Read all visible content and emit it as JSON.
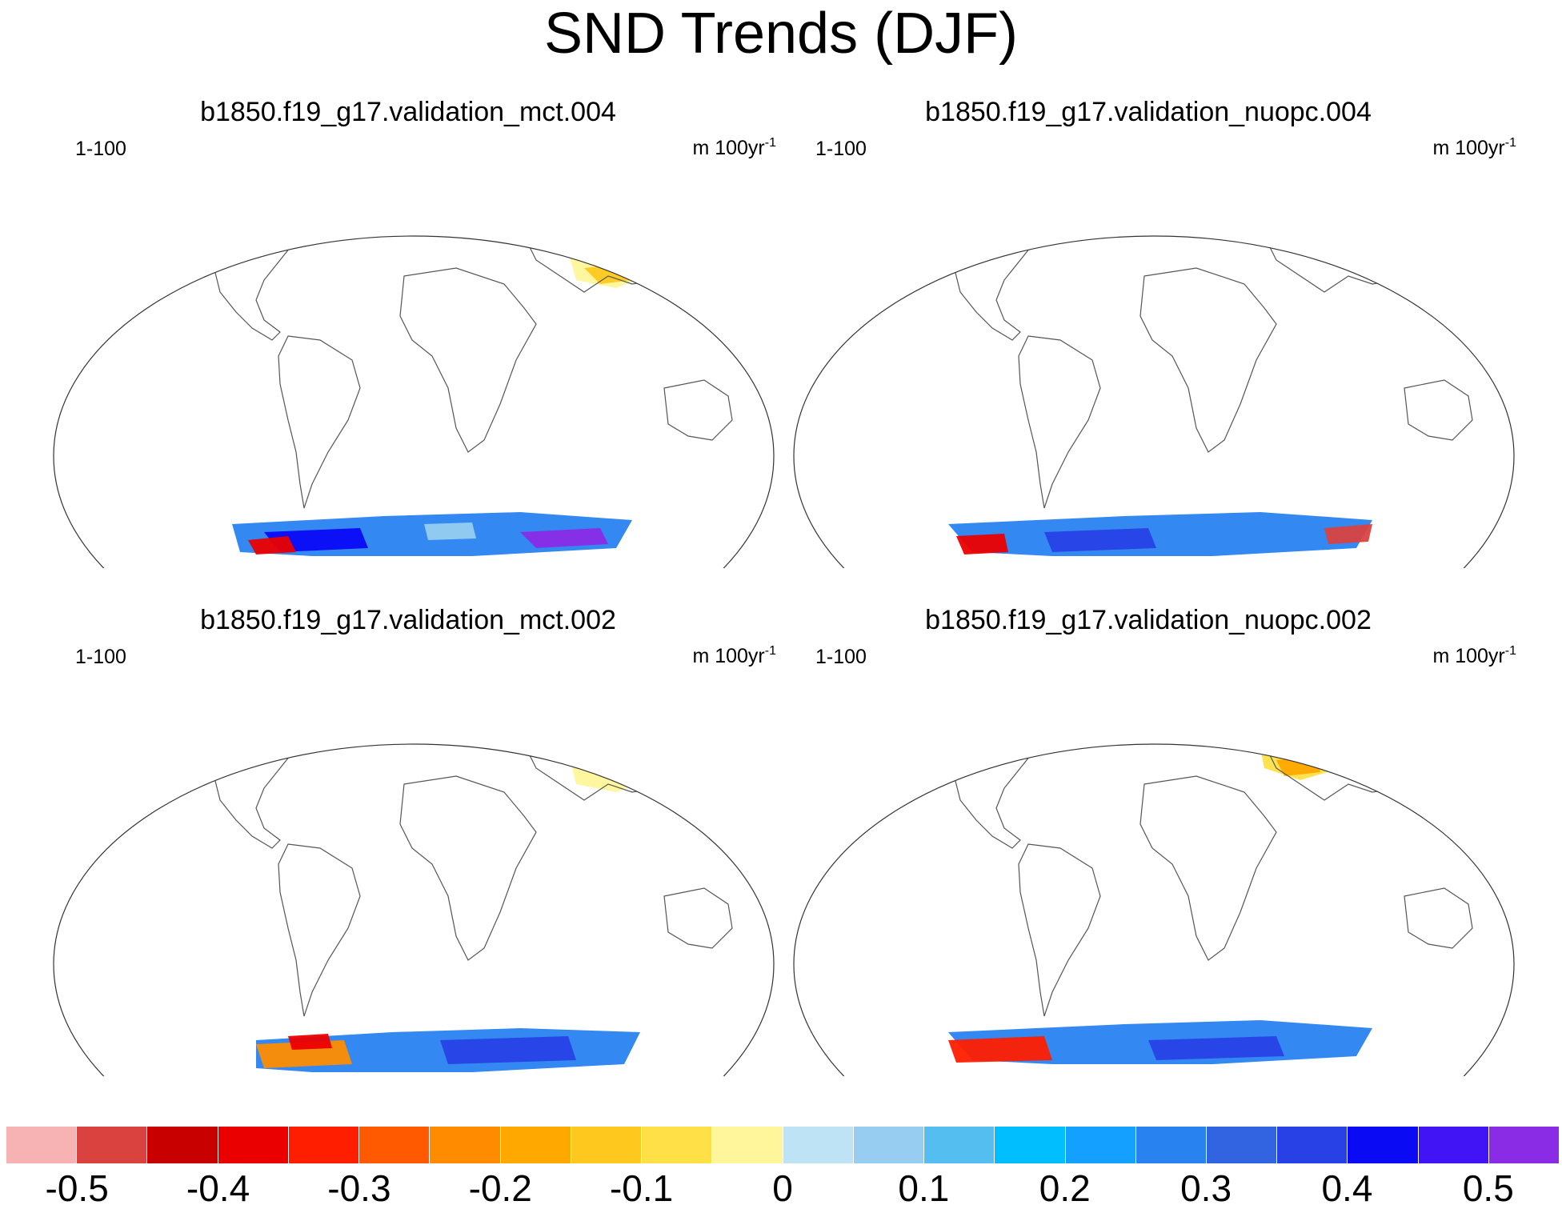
{
  "title": "SND Trends (DJF)",
  "panels": [
    {
      "title": "b1850.f19_g17.validation_mct.004",
      "range": "1-100",
      "units": "m 100yr",
      "units_exp": "-1"
    },
    {
      "title": "b1850.f19_g17.validation_nuopc.004",
      "range": "1-100",
      "units": "m 100yr",
      "units_exp": "-1"
    },
    {
      "title": "b1850.f19_g17.validation_mct.002",
      "range": "1-100",
      "units": "m 100yr",
      "units_exp": "-1"
    },
    {
      "title": "b1850.f19_g17.validation_nuopc.002",
      "range": "1-100",
      "units": "m 100yr",
      "units_exp": "-1"
    }
  ],
  "colorbar": {
    "colors": [
      "#F7B2B3",
      "#DA4240",
      "#C80000",
      "#EB0000",
      "#FF1E00",
      "#FF5A00",
      "#FF8C00",
      "#FFA800",
      "#FFC81E",
      "#FFE046",
      "#FFF59B",
      "#BEE3F5",
      "#96CDF0",
      "#55BEF0",
      "#00BEFF",
      "#14A0FF",
      "#2882F0",
      "#3264E1",
      "#2841E6",
      "#0A0AF5",
      "#4014F5",
      "#8A2BE6"
    ],
    "labels": [
      "-0.5",
      "-0.4",
      "-0.3",
      "-0.2",
      "-0.1",
      "0",
      "0.1",
      "0.2",
      "0.3",
      "0.4",
      "0.5"
    ]
  }
}
